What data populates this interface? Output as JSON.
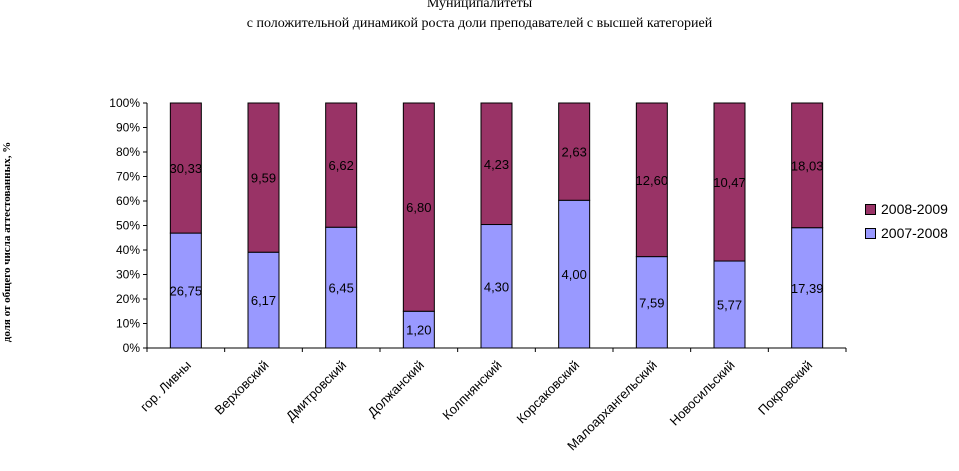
{
  "chart_data": {
    "type": "bar",
    "stacked": true,
    "percent_stacked": true,
    "title": "Муниципалитеты",
    "subtitle": "с положительной динамикой роста доли преподавателей с высшей категорией",
    "ylabel": "доля от общего числа аттестованных, %",
    "xlabel": "",
    "ylim": [
      0,
      100
    ],
    "yticks": [
      "0%",
      "10%",
      "20%",
      "30%",
      "40%",
      "50%",
      "60%",
      "70%",
      "80%",
      "90%",
      "100%"
    ],
    "categories": [
      "гор. Ливны",
      "Верховский",
      "Дмитровский",
      "Должанский",
      "Колпнянский",
      "Корсаковский",
      "Малоархангельский",
      "Новосильский",
      "Покровский"
    ],
    "series": [
      {
        "name": "2007-2008",
        "color": "#9999ff",
        "values": [
          26.75,
          6.17,
          6.45,
          1.2,
          4.3,
          4.0,
          7.59,
          5.77,
          17.39
        ],
        "shares": [
          46.9,
          39.1,
          49.3,
          15.0,
          50.4,
          60.3,
          37.3,
          35.5,
          49.1
        ]
      },
      {
        "name": "2008-2009",
        "color": "#993366",
        "values": [
          30.33,
          9.59,
          6.62,
          6.8,
          4.23,
          2.63,
          12.6,
          10.47,
          18.03
        ],
        "shares": [
          53.1,
          60.9,
          50.7,
          85.0,
          49.6,
          39.7,
          62.7,
          64.5,
          50.9
        ]
      }
    ],
    "data_labels": {
      "2007-2008": [
        "26,75",
        "6,17",
        "6,45",
        "1,20",
        "4,30",
        "4,00",
        "7,59",
        "5,77",
        "17,39"
      ],
      "2008-2009": [
        "30,33",
        "9,59",
        "6,62",
        "6,80",
        "4,23",
        "2,63",
        "12,60",
        "10,47",
        "18,03"
      ]
    },
    "legend_position": "right",
    "grid": false
  }
}
